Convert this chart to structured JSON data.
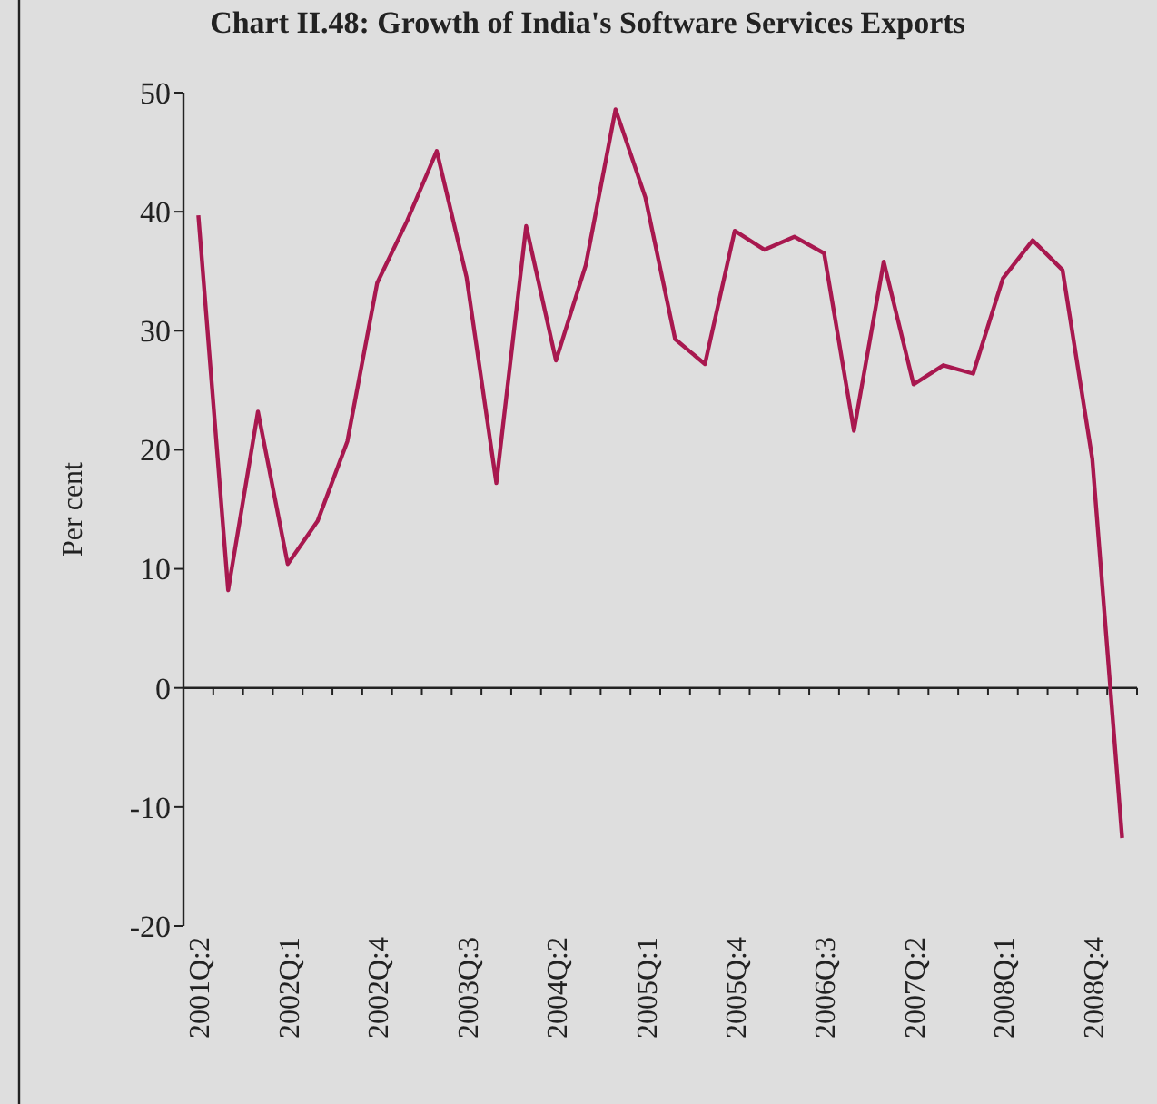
{
  "chart_data": {
    "type": "line",
    "title": "Chart II.48: Growth of India's Software Services Exports",
    "ylabel": "Per cent",
    "categories": [
      "2001Q:2",
      null,
      null,
      "2002Q:1",
      null,
      null,
      "2002Q:4",
      null,
      null,
      "2003Q:3",
      null,
      null,
      "2004Q:2",
      null,
      null,
      "2005Q:1",
      null,
      null,
      "2005Q:4",
      null,
      null,
      "2006Q:3",
      null,
      null,
      "2007Q:2",
      null,
      null,
      "2008Q:1",
      null,
      null,
      "2008Q:4",
      null
    ],
    "series": [
      {
        "color": "#a8184f",
        "values": [
          39.7,
          8.2,
          23.2,
          10.4,
          14,
          20.7,
          34,
          39.2,
          45.1,
          34.5,
          17.2,
          38.8,
          27.5,
          35.5,
          48.6,
          41.2,
          29.3,
          27.2,
          38.4,
          36.8,
          37.9,
          36.5,
          21.6,
          35.8,
          25.5,
          27.1,
          26.4,
          34.4,
          37.6,
          35.1,
          19.2,
          -12.6
        ]
      }
    ],
    "ylim": [
      -20,
      50
    ],
    "yticks": [
      -20,
      -10,
      0,
      10,
      20,
      30,
      40,
      50
    ],
    "marker": "none",
    "line_style": "solid"
  }
}
